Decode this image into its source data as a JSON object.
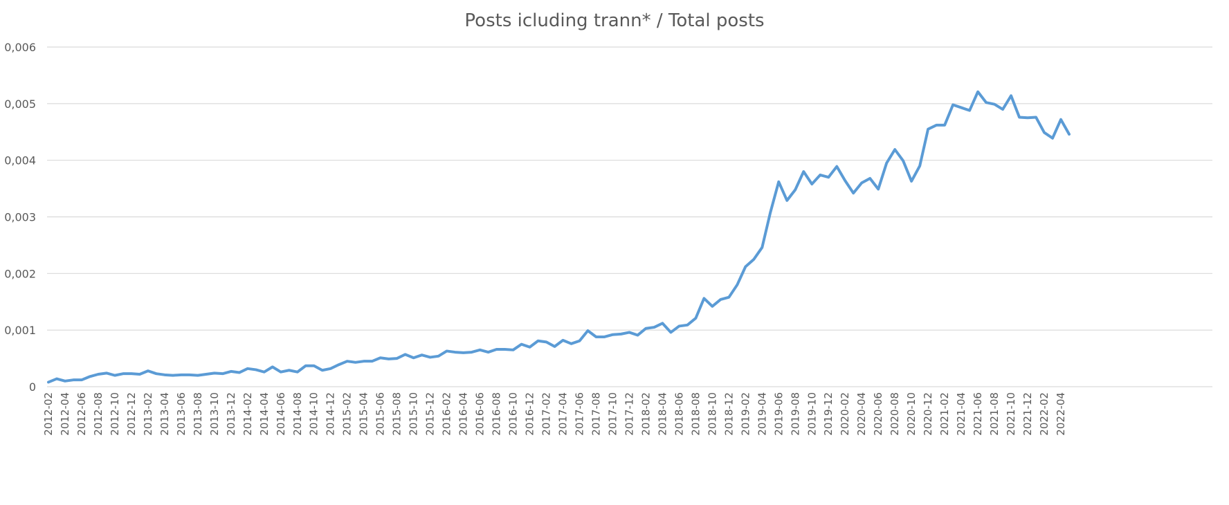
{
  "chart_data": {
    "type": "line",
    "title": "Posts icluding trann* / Total posts",
    "xlabel": "",
    "ylabel": "",
    "ylim": [
      0,
      0.006
    ],
    "yticks": [
      0,
      0.001,
      0.002,
      0.003,
      0.004,
      0.005,
      0.006
    ],
    "ytick_labels": [
      "0",
      "0,001",
      "0,002",
      "0,003",
      "0,004",
      "0,005",
      "0,006"
    ],
    "grid": true,
    "legend": "none",
    "color": "#5b9bd5",
    "x": [
      "2012-02",
      "2012-03",
      "2012-04",
      "2012-05",
      "2012-06",
      "2012-07",
      "2012-08",
      "2012-09",
      "2012-10",
      "2012-11",
      "2012-12",
      "2013-01",
      "2013-02",
      "2013-03",
      "2013-04",
      "2013-05",
      "2013-06",
      "2013-07",
      "2013-08",
      "2013-09",
      "2013-10",
      "2013-11",
      "2013-12",
      "2014-01",
      "2014-02",
      "2014-03",
      "2014-04",
      "2014-05",
      "2014-06",
      "2014-07",
      "2014-08",
      "2014-09",
      "2014-10",
      "2014-11",
      "2014-12",
      "2015-01",
      "2015-02",
      "2015-03",
      "2015-04",
      "2015-05",
      "2015-06",
      "2015-07",
      "2015-08",
      "2015-09",
      "2015-10",
      "2015-11",
      "2015-12",
      "2016-01",
      "2016-02",
      "2016-03",
      "2016-04",
      "2016-05",
      "2016-06",
      "2016-07",
      "2016-08",
      "2016-09",
      "2016-10",
      "2016-11",
      "2016-12",
      "2017-01",
      "2017-02",
      "2017-03",
      "2017-04",
      "2017-05",
      "2017-06",
      "2017-07",
      "2017-08",
      "2017-09",
      "2017-10",
      "2017-11",
      "2017-12",
      "2018-01",
      "2018-02",
      "2018-03",
      "2018-04",
      "2018-05",
      "2018-06",
      "2018-07",
      "2018-08",
      "2018-09",
      "2018-10",
      "2018-11",
      "2018-12",
      "2019-01",
      "2019-02",
      "2019-03",
      "2019-04",
      "2019-05",
      "2019-06",
      "2019-07",
      "2019-08",
      "2019-09",
      "2019-10",
      "2019-11",
      "2019-12",
      "2020-01",
      "2020-02",
      "2020-03",
      "2020-04",
      "2020-05",
      "2020-06",
      "2020-07",
      "2020-08",
      "2020-09",
      "2020-10",
      "2020-11",
      "2020-12",
      "2021-01",
      "2021-02",
      "2021-03",
      "2021-04",
      "2021-05",
      "2021-06",
      "2021-07",
      "2021-08",
      "2021-09",
      "2021-10",
      "2021-11",
      "2021-12",
      "2022-01",
      "2022-02",
      "2022-03",
      "2022-04",
      "2022-05"
    ],
    "x_tick_labels": [
      "2012-02",
      "2012-04",
      "2012-06",
      "2012-08",
      "2012-10",
      "2012-12",
      "2013-02",
      "2013-04",
      "2013-06",
      "2013-08",
      "2013-10",
      "2013-12",
      "2014-02",
      "2014-04",
      "2014-06",
      "2014-08",
      "2014-10",
      "2014-12",
      "2015-02",
      "2015-04",
      "2015-06",
      "2015-08",
      "2015-10",
      "2015-12",
      "2016-02",
      "2016-04",
      "2016-06",
      "2016-08",
      "2016-10",
      "2016-12",
      "2017-02",
      "2017-04",
      "2017-06",
      "2017-08",
      "2017-10",
      "2017-12",
      "2018-02",
      "2018-04",
      "2018-06",
      "2018-08",
      "2018-10",
      "2018-12",
      "2019-02",
      "2019-04",
      "2019-06",
      "2019-08",
      "2019-10",
      "2019-12",
      "2020-02",
      "2020-04",
      "2020-06",
      "2020-08",
      "2020-10",
      "2020-12",
      "2021-02",
      "2021-04",
      "2021-06",
      "2021-08",
      "2021-10",
      "2021-12",
      "2022-02",
      "2022-04"
    ],
    "series": [
      {
        "values": [
          8e-05,
          0.00014,
          0.0001,
          0.00012,
          0.00012,
          0.00018,
          0.00022,
          0.00024,
          0.0002,
          0.00023,
          0.00023,
          0.00022,
          0.00028,
          0.00023,
          0.00021,
          0.0002,
          0.00021,
          0.00021,
          0.0002,
          0.00022,
          0.00024,
          0.00023,
          0.00027,
          0.00025,
          0.00032,
          0.0003,
          0.00026,
          0.00035,
          0.00026,
          0.00029,
          0.00026,
          0.00037,
          0.00037,
          0.00029,
          0.00032,
          0.00039,
          0.00045,
          0.00043,
          0.00045,
          0.00045,
          0.00051,
          0.00049,
          0.0005,
          0.00057,
          0.00051,
          0.00056,
          0.00052,
          0.00054,
          0.00063,
          0.00061,
          0.0006,
          0.00061,
          0.00065,
          0.00061,
          0.00066,
          0.00066,
          0.00065,
          0.00075,
          0.0007,
          0.00081,
          0.00079,
          0.00071,
          0.00082,
          0.00076,
          0.00081,
          0.00099,
          0.00088,
          0.00088,
          0.00092,
          0.00093,
          0.00096,
          0.00091,
          0.00103,
          0.00105,
          0.00112,
          0.00096,
          0.00107,
          0.00109,
          0.00121,
          0.00156,
          0.00142,
          0.00154,
          0.00158,
          0.0018,
          0.00212,
          0.00225,
          0.00246,
          0.00308,
          0.00362,
          0.00329,
          0.00348,
          0.0038,
          0.00358,
          0.00374,
          0.0037,
          0.00389,
          0.00364,
          0.00342,
          0.0036,
          0.00368,
          0.00349,
          0.00395,
          0.00419,
          0.00399,
          0.00363,
          0.0039,
          0.00455,
          0.00462,
          0.00462,
          0.00498,
          0.00493,
          0.00488,
          0.00521,
          0.00502,
          0.00499,
          0.0049,
          0.00514,
          0.00476,
          0.00475,
          0.00476,
          0.00449,
          0.00439,
          0.00472,
          0.00446
        ]
      }
    ]
  }
}
